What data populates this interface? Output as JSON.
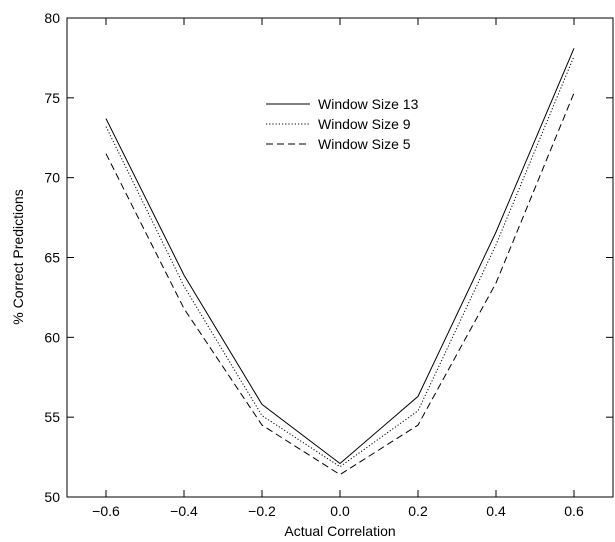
{
  "chart_data": {
    "type": "line",
    "x": [
      -0.6,
      -0.4,
      -0.2,
      0.0,
      0.2,
      0.4,
      0.6
    ],
    "series": [
      {
        "name": "Window Size 13",
        "values": [
          73.7,
          63.9,
          55.8,
          52.1,
          56.3,
          66.6,
          78.1
        ],
        "dash": "solid"
      },
      {
        "name": "Window Size 9",
        "values": [
          73.2,
          63.2,
          55.1,
          51.9,
          55.4,
          65.8,
          77.6
        ],
        "dash": "dotted"
      },
      {
        "name": "Window Size 5",
        "values": [
          71.5,
          61.8,
          54.5,
          51.4,
          54.5,
          63.4,
          75.3
        ],
        "dash": "dashed"
      }
    ],
    "xlabel": "Actual Correlation",
    "ylabel": "% Correct Predictions",
    "xlim": [
      -0.7,
      0.7
    ],
    "ylim": [
      50,
      80
    ],
    "xticks": [
      -0.6,
      -0.4,
      -0.2,
      0.0,
      0.2,
      0.4,
      0.6
    ],
    "xtick_labels": [
      "−0.6",
      "−0.4",
      "−0.2",
      "0.0",
      "0.2",
      "0.4",
      "0.6"
    ],
    "yticks": [
      50,
      55,
      60,
      65,
      70,
      75,
      80
    ],
    "ytick_labels": [
      "50",
      "55",
      "60",
      "65",
      "70",
      "75",
      "80"
    ],
    "grid": false,
    "legend_position": "top-center",
    "colors": {
      "line": "#000000",
      "axis": "#000000",
      "background": "#ffffff"
    }
  }
}
